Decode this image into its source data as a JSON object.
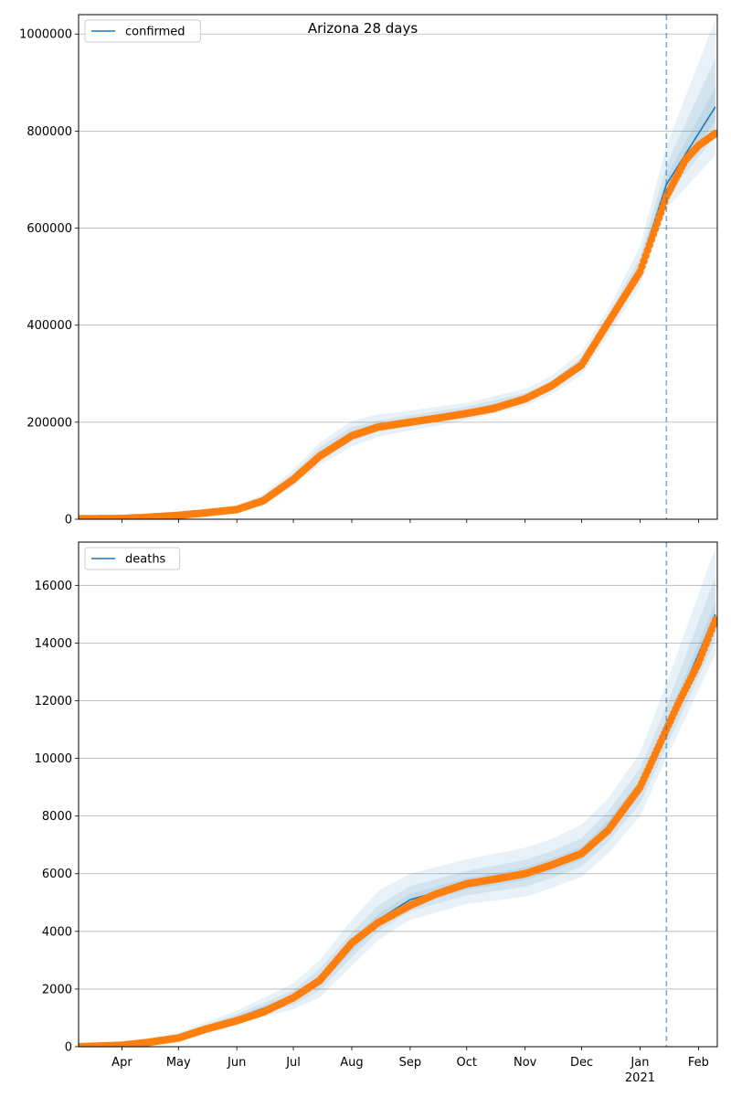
{
  "chart_data": [
    {
      "type": "line",
      "title": "Arizona 28 days",
      "legend": {
        "entries": [
          "confirmed"
        ],
        "placement": "top-left"
      },
      "ylim": [
        0,
        1040000
      ],
      "yticks": [
        0,
        200000,
        400000,
        600000,
        800000,
        1000000
      ],
      "ytick_labels": [
        "0",
        "200000",
        "400000",
        "600000",
        "800000",
        "1000000"
      ],
      "grid": "horizontal",
      "vline_date": "2021-01-15",
      "model_color": "#1f77b4",
      "observed_color": "#ff7f0e",
      "model": {
        "dates": [
          "2020-03-10",
          "2020-04-01",
          "2020-05-01",
          "2020-06-01",
          "2020-06-15",
          "2020-07-01",
          "2020-07-15",
          "2020-08-01",
          "2020-08-15",
          "2020-09-01",
          "2020-10-01",
          "2020-11-01",
          "2020-11-15",
          "2020-12-01",
          "2020-12-15",
          "2021-01-01",
          "2021-01-15",
          "2021-02-10"
        ],
        "values": [
          1000,
          2000,
          9000,
          22000,
          42000,
          85000,
          135000,
          175000,
          192000,
          203000,
          222000,
          250000,
          275000,
          320000,
          405000,
          520000,
          690000,
          850000
        ],
        "bands": [
          {
            "lower": [
              0,
              0,
              6000,
              17000,
              33000,
              68000,
              112000,
              150000,
              170000,
              183000,
              204000,
              233000,
              257000,
              298000,
              377000,
              482000,
              640000,
              750000
            ],
            "upper": [
              4000,
              5000,
              13000,
              28000,
              52000,
              102000,
              158000,
              203000,
              216000,
              224000,
              240000,
              269000,
              295000,
              345000,
              433000,
              562000,
              770000,
              1030000
            ]
          },
          {
            "lower": [
              0,
              1000,
              7500,
              19000,
              37000,
              75000,
              122000,
              161000,
              180000,
              192000,
              212000,
              241000,
              265000,
              308000,
              390000,
              500000,
              665000,
              790000
            ],
            "upper": [
              2500,
              3500,
              11000,
              25000,
              47000,
              95000,
              148000,
              190000,
              204000,
              214000,
              232000,
              260000,
              285000,
              333000,
              420000,
              540000,
              730000,
              950000
            ]
          },
          {
            "lower": [
              500,
              1500,
              8500,
              21000,
              40000,
              81000,
              130000,
              169000,
              187000,
              199000,
              219000,
              247000,
              272000,
              316000,
              400000,
              512000,
              682000,
              820000
            ],
            "upper": [
              1500,
              2500,
              9800,
              23500,
              44000,
              89000,
              140000,
              181000,
              197000,
              207000,
              225000,
              253000,
              278000,
              324000,
              410000,
              528000,
              705000,
              890000
            ]
          }
        ]
      },
      "observed": {
        "dates": [
          "2020-03-10",
          "2020-04-01",
          "2020-04-15",
          "2020-05-01",
          "2020-05-15",
          "2020-06-01",
          "2020-06-15",
          "2020-07-01",
          "2020-07-15",
          "2020-08-01",
          "2020-08-15",
          "2020-09-01",
          "2020-09-15",
          "2020-10-01",
          "2020-10-15",
          "2020-11-01",
          "2020-11-15",
          "2020-12-01",
          "2020-12-15",
          "2021-01-01",
          "2021-01-15",
          "2021-01-25",
          "2021-02-01",
          "2021-02-10"
        ],
        "values": [
          1000,
          1500,
          4000,
          8000,
          13000,
          20000,
          38000,
          82000,
          130000,
          172000,
          190000,
          200000,
          208000,
          218000,
          228000,
          248000,
          275000,
          318000,
          405000,
          510000,
          665000,
          740000,
          770000,
          795000
        ]
      }
    },
    {
      "type": "line",
      "title": "",
      "legend": {
        "entries": [
          "deaths"
        ],
        "placement": "top-left"
      },
      "ylim": [
        0,
        17500
      ],
      "yticks": [
        0,
        2000,
        4000,
        6000,
        8000,
        10000,
        12000,
        14000,
        16000
      ],
      "ytick_labels": [
        "0",
        "2000",
        "4000",
        "6000",
        "8000",
        "10000",
        "12000",
        "14000",
        "16000"
      ],
      "grid": "horizontal",
      "vline_date": "2021-01-15",
      "model_color": "#1f77b4",
      "observed_color": "#ff7f0e",
      "model": {
        "dates": [
          "2020-03-10",
          "2020-04-01",
          "2020-05-01",
          "2020-06-01",
          "2020-07-01",
          "2020-07-15",
          "2020-08-01",
          "2020-08-15",
          "2020-09-01",
          "2020-10-01",
          "2020-11-01",
          "2020-11-15",
          "2020-12-01",
          "2020-12-15",
          "2021-01-01",
          "2021-01-15",
          "2021-02-10"
        ],
        "values": [
          0,
          50,
          350,
          1000,
          1700,
          2300,
          3500,
          4400,
          5100,
          5650,
          6000,
          6300,
          6700,
          7600,
          9000,
          11000,
          15000
        ],
        "bands": [
          {
            "lower": [
              0,
              0,
              250,
              800,
              1300,
              1700,
              2800,
              3700,
              4400,
              4950,
              5200,
              5500,
              5900,
              6700,
              8000,
              10000,
              13600
            ],
            "upper": [
              0,
              100,
              500,
              1250,
              2200,
              3000,
              4400,
              5400,
              6000,
              6500,
              6900,
              7200,
              7700,
              8600,
              10200,
              12600,
              17300
            ]
          },
          {
            "lower": [
              0,
              20,
              290,
              880,
              1450,
              1950,
              3100,
              4000,
              4700,
              5250,
              5550,
              5850,
              6250,
              7100,
              8450,
              10400,
              14100
            ],
            "upper": [
              0,
              80,
              420,
              1130,
              1960,
              2700,
              3950,
              4900,
              5560,
              6100,
              6480,
              6780,
              7230,
              8150,
              9650,
              11800,
              16300
            ]
          },
          {
            "lower": [
              0,
              35,
              320,
              950,
              1580,
              2130,
              3300,
              4200,
              4900,
              5450,
              5780,
              6080,
              6480,
              7350,
              8750,
              10700,
              14600
            ],
            "upper": [
              0,
              65,
              380,
              1060,
              1820,
              2480,
              3700,
              4600,
              5300,
              5850,
              6220,
              6520,
              6920,
              7850,
              9250,
              11300,
              15400
            ]
          }
        ]
      },
      "observed": {
        "dates": [
          "2020-03-10",
          "2020-04-01",
          "2020-04-15",
          "2020-05-01",
          "2020-05-15",
          "2020-06-01",
          "2020-06-15",
          "2020-07-01",
          "2020-07-15",
          "2020-08-01",
          "2020-08-15",
          "2020-09-01",
          "2020-09-15",
          "2020-10-01",
          "2020-10-15",
          "2020-11-01",
          "2020-11-15",
          "2020-12-01",
          "2020-12-15",
          "2021-01-01",
          "2021-01-08",
          "2021-01-15",
          "2021-01-22",
          "2021-02-01",
          "2021-02-10"
        ],
        "values": [
          0,
          50,
          150,
          300,
          600,
          900,
          1200,
          1700,
          2300,
          3600,
          4300,
          4900,
          5300,
          5650,
          5800,
          6000,
          6300,
          6700,
          7500,
          9000,
          10000,
          11000,
          12000,
          13300,
          14800
        ]
      }
    }
  ],
  "x_axis": {
    "domain": [
      "2020-03-09",
      "2021-02-11"
    ],
    "labels": [
      {
        "date": "2020-04-01",
        "text": "Apr"
      },
      {
        "date": "2020-05-01",
        "text": "May"
      },
      {
        "date": "2020-06-01",
        "text": "Jun"
      },
      {
        "date": "2020-07-01",
        "text": "Jul"
      },
      {
        "date": "2020-08-01",
        "text": "Aug"
      },
      {
        "date": "2020-09-01",
        "text": "Sep"
      },
      {
        "date": "2020-10-01",
        "text": "Oct"
      },
      {
        "date": "2020-11-01",
        "text": "Nov"
      },
      {
        "date": "2020-12-01",
        "text": "Dec"
      },
      {
        "date": "2021-01-01",
        "text": "Jan"
      },
      {
        "date": "2021-02-01",
        "text": "Feb"
      }
    ],
    "year_label": {
      "date": "2021-01-01",
      "text": "2021"
    }
  }
}
